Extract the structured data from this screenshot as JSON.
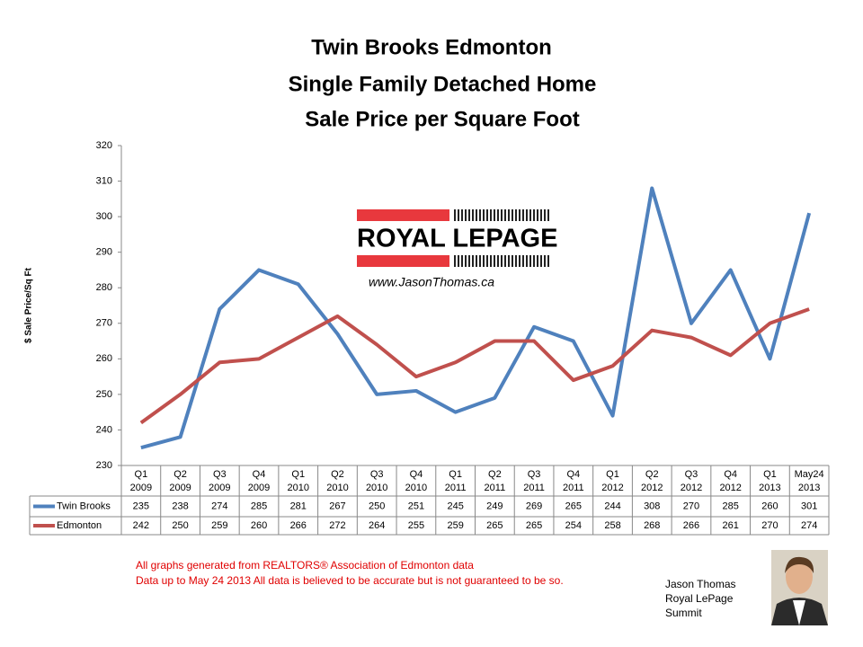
{
  "chart_data": {
    "type": "line",
    "title": "Twin Brooks Edmonton",
    "subtitles": [
      "Single Family Detached Home",
      "Sale Price per Square Foot"
    ],
    "y_label": "$ Sale Price/Sq Ft",
    "categories": [
      "Q1 2009",
      "Q2 2009",
      "Q3 2009",
      "Q4 2009",
      "Q1 2010",
      "Q2 2010",
      "Q3 2010",
      "Q4 2010",
      "Q1 2011",
      "Q2 2011",
      "Q3 2011",
      "Q4 2011",
      "Q1 2012",
      "Q2 2012",
      "Q3 2012",
      "Q4 2012",
      "Q1 2013",
      "May24 2013"
    ],
    "series": [
      {
        "name": "Twin Brooks",
        "color": "#4f81bd",
        "values": [
          235,
          238,
          274,
          285,
          281,
          267,
          250,
          251,
          245,
          249,
          269,
          265,
          244,
          308,
          270,
          285,
          260,
          301
        ]
      },
      {
        "name": "Edmonton",
        "color": "#c0504d",
        "values": [
          242,
          250,
          259,
          260,
          266,
          272,
          264,
          255,
          259,
          265,
          265,
          254,
          258,
          268,
          266,
          261,
          270,
          274
        ]
      }
    ],
    "ylim": [
      230,
      320
    ],
    "yticks": [
      230,
      240,
      250,
      260,
      270,
      280,
      290,
      300,
      310,
      320
    ],
    "grid": false,
    "data_table": true
  },
  "logo": {
    "brand": "ROYAL LEPAGE",
    "url": "www.JasonThomas.ca"
  },
  "footer": {
    "notes": [
      "All graphs generated from REALTORS® Association of Edmonton data",
      "Data up to  May 24 2013  All data is believed to be accurate but is not guaranteed to be so."
    ],
    "agent": [
      "Jason Thomas",
      "Royal LePage",
      "Summit"
    ]
  }
}
